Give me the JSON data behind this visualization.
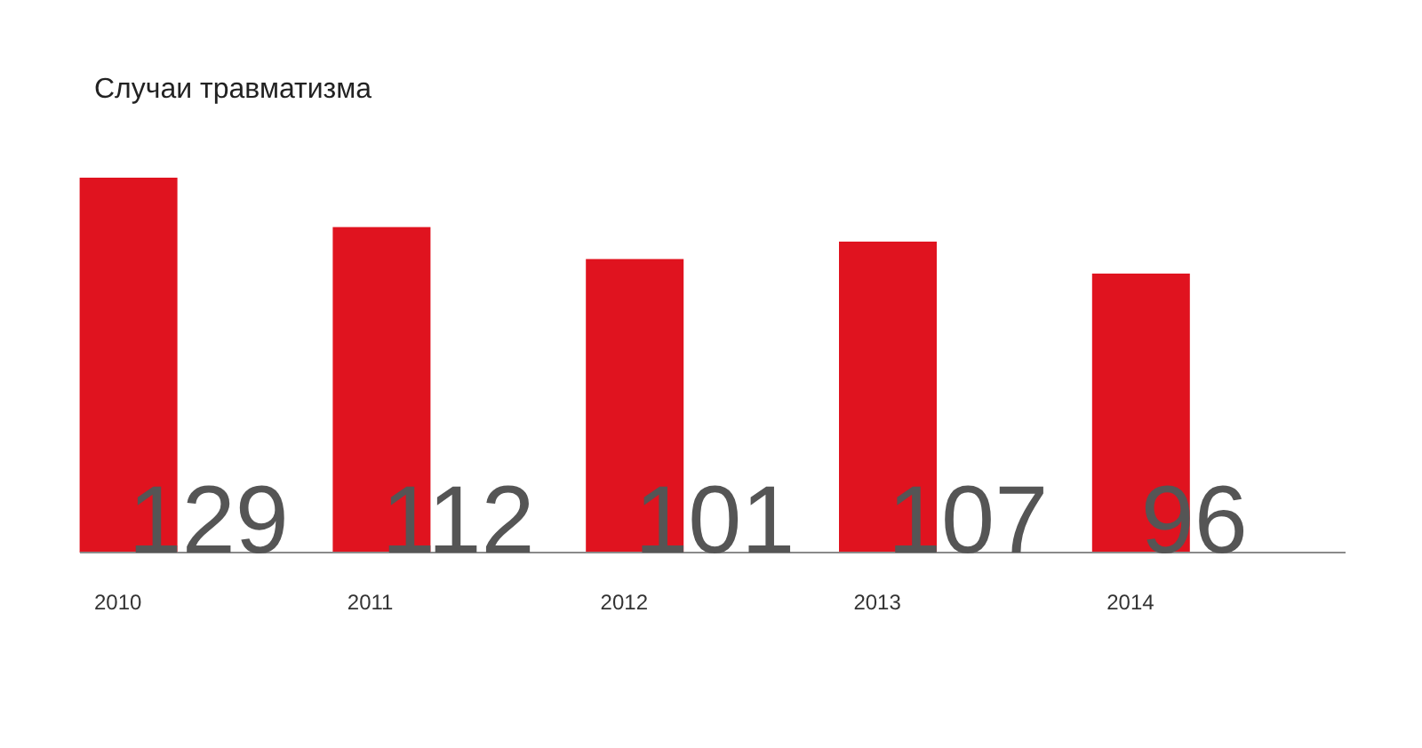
{
  "chart_data": {
    "type": "bar",
    "title": "Случаи травматизма",
    "categories": [
      "2010",
      "2011",
      "2012",
      "2013",
      "2014"
    ],
    "values": [
      129,
      112,
      101,
      107,
      96
    ],
    "color": "#e0131f",
    "data_labels": true
  }
}
